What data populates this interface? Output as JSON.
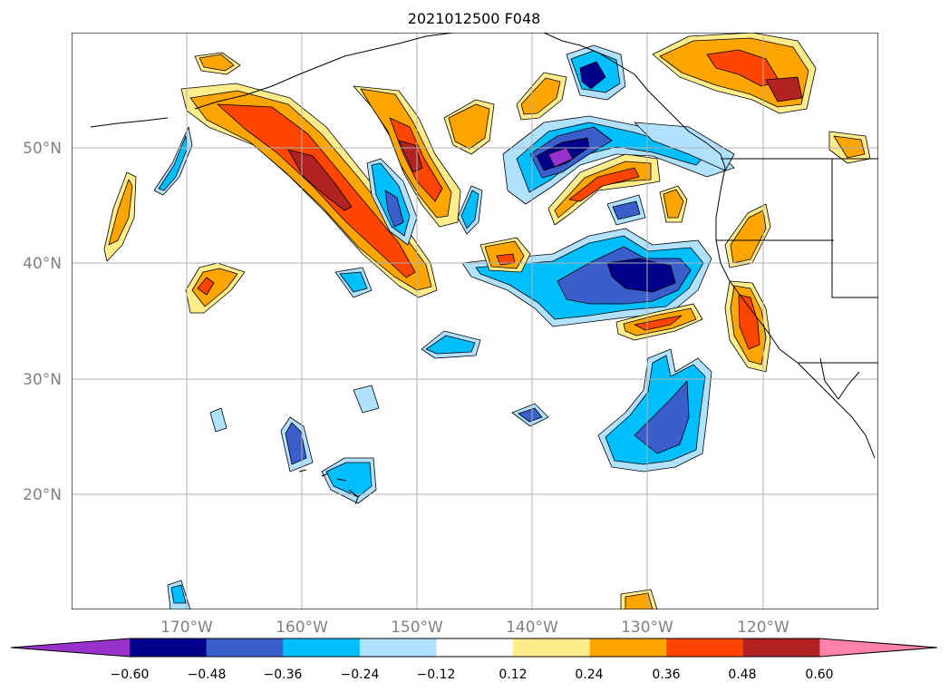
{
  "map": {
    "title": "2021012500 F048",
    "lat_labels": [
      "50°N",
      "40°N",
      "30°N",
      "20°N"
    ],
    "lon_labels": [
      "170°W",
      "160°W",
      "150°W",
      "140°W",
      "130°W",
      "120°W"
    ],
    "extent": {
      "lon_min": -180,
      "lon_max": -110,
      "lat_min": 10,
      "lat_max": 60
    }
  },
  "colorbar": {
    "colors": [
      "#9932cc",
      "#00008b",
      "#3a5fcd",
      "#00bfff",
      "#b0e2ff",
      "#ffffff",
      "#ffec8b",
      "#ffa500",
      "#ff4500",
      "#b22222",
      "#ff82ab"
    ],
    "tick_labels": [
      "−0.60",
      "−0.48",
      "−0.36",
      "−0.24",
      "−0.12",
      "0.12",
      "0.24",
      "0.36",
      "0.48",
      "0.60"
    ]
  }
}
